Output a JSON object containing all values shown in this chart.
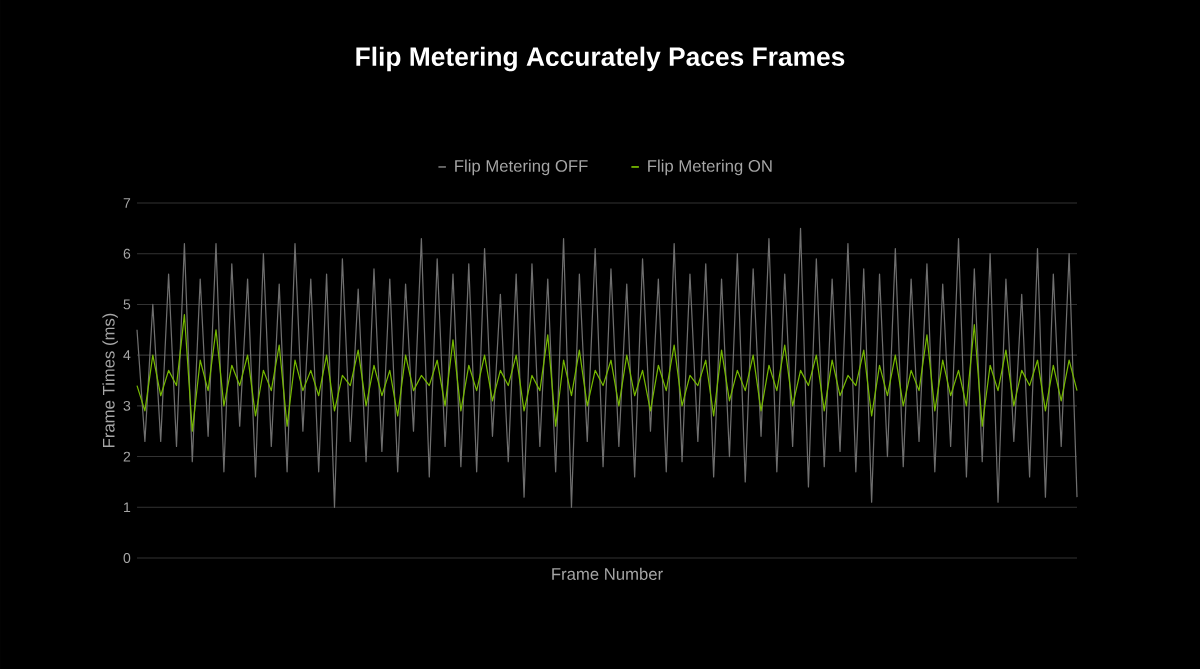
{
  "chart_data": {
    "type": "line",
    "title": "Flip Metering Accurately Paces Frames",
    "xlabel": "Frame Number",
    "ylabel": "Frame Times (ms)",
    "categories": [
      null,
      null,
      null,
      null,
      null,
      null,
      null,
      null,
      null,
      null,
      null,
      null,
      null,
      null,
      null,
      null,
      null,
      null,
      null,
      null,
      null,
      null,
      null,
      null,
      null,
      null,
      null,
      null,
      null,
      null,
      null,
      null,
      null,
      null,
      null,
      null,
      null,
      null,
      null,
      null,
      null,
      null,
      null,
      null,
      null,
      null,
      null,
      null,
      null,
      null,
      null,
      null,
      null,
      null,
      null,
      null,
      null,
      null,
      null,
      null,
      null,
      null,
      null,
      null,
      null,
      null,
      null,
      null,
      null,
      null,
      null,
      null,
      null,
      null,
      null,
      null,
      null,
      null,
      null,
      null,
      null,
      null,
      null,
      null,
      null,
      null,
      null,
      null,
      null,
      null,
      null,
      null,
      null,
      null,
      null,
      null,
      null,
      null,
      null,
      null,
      null,
      null,
      null,
      null,
      null,
      null,
      null,
      null,
      null,
      null,
      null,
      null,
      null,
      null,
      null,
      null,
      null,
      null,
      null,
      null
    ],
    "series": [
      {
        "name": "Flip Metering OFF",
        "color": "#6f6f6f",
        "values": [
          4.5,
          2.3,
          5.0,
          2.3,
          5.6,
          2.2,
          6.2,
          1.9,
          5.5,
          2.4,
          6.2,
          1.7,
          5.8,
          2.6,
          5.5,
          1.6,
          6.0,
          2.2,
          5.4,
          1.7,
          6.2,
          2.5,
          5.5,
          1.7,
          5.6,
          1.0,
          5.9,
          2.3,
          5.3,
          1.9,
          5.7,
          2.1,
          5.5,
          1.7,
          5.4,
          2.5,
          6.3,
          1.6,
          5.9,
          2.2,
          5.6,
          1.8,
          5.8,
          1.7,
          6.1,
          2.4,
          5.2,
          1.9,
          5.6,
          1.2,
          5.8,
          2.2,
          5.5,
          1.7,
          6.3,
          1.0,
          5.6,
          2.3,
          6.1,
          1.8,
          5.7,
          2.2,
          5.4,
          1.6,
          5.9,
          2.5,
          5.5,
          1.7,
          6.2,
          1.9,
          5.6,
          2.3,
          5.8,
          1.6,
          5.5,
          2.0,
          6.0,
          1.5,
          5.7,
          2.4,
          6.3,
          1.7,
          5.6,
          2.2,
          6.5,
          1.4,
          5.9,
          1.8,
          5.5,
          2.1,
          6.2,
          1.7,
          5.7,
          1.1,
          5.6,
          2.0,
          6.1,
          1.8,
          5.5,
          2.3,
          5.8,
          1.7,
          5.4,
          2.2,
          6.3,
          1.6,
          5.7,
          1.9,
          6.0,
          1.1,
          5.5,
          2.3,
          5.2,
          1.6,
          6.1,
          1.2,
          5.6,
          2.2,
          6.0,
          1.2
        ]
      },
      {
        "name": "Flip Metering ON",
        "color": "#76b900",
        "values": [
          3.4,
          2.9,
          4.0,
          3.2,
          3.7,
          3.4,
          4.8,
          2.5,
          3.9,
          3.3,
          4.5,
          3.0,
          3.8,
          3.4,
          4.0,
          2.8,
          3.7,
          3.3,
          4.2,
          2.6,
          3.9,
          3.3,
          3.7,
          3.2,
          4.0,
          2.9,
          3.6,
          3.4,
          4.1,
          3.0,
          3.8,
          3.2,
          3.7,
          2.8,
          4.0,
          3.3,
          3.6,
          3.4,
          3.9,
          3.0,
          4.3,
          2.9,
          3.8,
          3.3,
          4.0,
          3.1,
          3.7,
          3.4,
          4.0,
          2.9,
          3.6,
          3.3,
          4.4,
          2.6,
          3.9,
          3.2,
          4.1,
          3.0,
          3.7,
          3.4,
          3.9,
          3.0,
          4.0,
          3.2,
          3.7,
          2.9,
          3.8,
          3.3,
          4.2,
          3.0,
          3.6,
          3.4,
          3.9,
          2.8,
          4.1,
          3.1,
          3.7,
          3.3,
          4.0,
          2.9,
          3.8,
          3.3,
          4.2,
          3.0,
          3.7,
          3.4,
          4.0,
          2.9,
          3.9,
          3.2,
          3.6,
          3.4,
          4.1,
          2.8,
          3.8,
          3.2,
          4.0,
          3.0,
          3.7,
          3.3,
          4.4,
          2.9,
          3.9,
          3.2,
          3.7,
          3.0,
          4.6,
          2.6,
          3.8,
          3.3,
          4.1,
          3.0,
          3.7,
          3.4,
          3.9,
          2.9,
          3.8,
          3.1,
          3.9,
          3.3
        ]
      }
    ],
    "ylim": [
      0,
      7
    ],
    "yticks": [
      0,
      1,
      2,
      3,
      4,
      5,
      6,
      7
    ],
    "grid": "y",
    "legend": "top",
    "tick_labels": "y"
  }
}
